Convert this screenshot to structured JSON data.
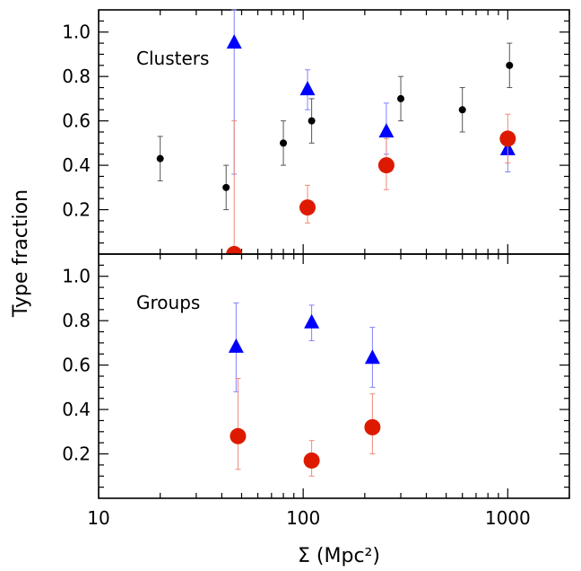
{
  "chart_data": [
    {
      "type": "scatter",
      "panel_label": "Clusters",
      "xlabel": "Σ (Mpc²)",
      "ylabel": "Type fraction",
      "x_scale": "log",
      "xlim": [
        10,
        2000
      ],
      "ylim": [
        0.0,
        1.1
      ],
      "x_ticks": [
        10,
        100,
        1000
      ],
      "x_tick_labels": [
        "",
        "",
        ""
      ],
      "y_ticks": [
        0.2,
        0.4,
        0.6,
        0.8,
        1.0
      ],
      "y_tick_labels": [
        "0.2",
        "0.4",
        "0.6",
        "0.8",
        "1.0"
      ],
      "series": [
        {
          "marker": "dot",
          "color": "#000000",
          "points": [
            {
              "x": 20,
              "y": 0.43,
              "lo": 0.33,
              "hi": 0.53
            },
            {
              "x": 42,
              "y": 0.3,
              "lo": 0.2,
              "hi": 0.4
            },
            {
              "x": 80,
              "y": 0.5,
              "lo": 0.4,
              "hi": 0.6
            },
            {
              "x": 110,
              "y": 0.6,
              "lo": 0.5,
              "hi": 0.7
            },
            {
              "x": 300,
              "y": 0.7,
              "lo": 0.6,
              "hi": 0.8
            },
            {
              "x": 600,
              "y": 0.65,
              "lo": 0.55,
              "hi": 0.75
            },
            {
              "x": 1020,
              "y": 0.85,
              "lo": 0.75,
              "hi": 0.95
            }
          ]
        },
        {
          "marker": "triangle",
          "color": "#0000ff",
          "points": [
            {
              "x": 46,
              "y": 0.95,
              "lo": 0.36,
              "hi": 1.1
            },
            {
              "x": 105,
              "y": 0.74,
              "lo": 0.65,
              "hi": 0.83
            },
            {
              "x": 255,
              "y": 0.55,
              "lo": 0.45,
              "hi": 0.68
            },
            {
              "x": 1000,
              "y": 0.47,
              "lo": 0.37,
              "hi": 0.55
            }
          ]
        },
        {
          "marker": "circle",
          "color": "#dd1a00",
          "points": [
            {
              "x": 46,
              "y": 0.0,
              "lo": 0.0,
              "hi": 0.6
            },
            {
              "x": 105,
              "y": 0.21,
              "lo": 0.14,
              "hi": 0.31
            },
            {
              "x": 255,
              "y": 0.4,
              "lo": 0.29,
              "hi": 0.52
            },
            {
              "x": 1000,
              "y": 0.52,
              "lo": 0.41,
              "hi": 0.63
            }
          ]
        }
      ]
    },
    {
      "type": "scatter",
      "panel_label": "Groups",
      "x_scale": "log",
      "xlim": [
        10,
        2000
      ],
      "ylim": [
        0.0,
        1.1
      ],
      "x_ticks": [
        10,
        100,
        1000
      ],
      "x_tick_labels": [
        "10",
        "100",
        "1000"
      ],
      "y_ticks": [
        0.2,
        0.4,
        0.6,
        0.8,
        1.0
      ],
      "y_tick_labels": [
        "0.2",
        "0.4",
        "0.6",
        "0.8",
        "1.0"
      ],
      "series": [
        {
          "marker": "triangle",
          "color": "#0000ff",
          "points": [
            {
              "x": 47,
              "y": 0.68,
              "lo": 0.48,
              "hi": 0.88
            },
            {
              "x": 110,
              "y": 0.79,
              "lo": 0.71,
              "hi": 0.87
            },
            {
              "x": 218,
              "y": 0.63,
              "lo": 0.5,
              "hi": 0.77
            }
          ]
        },
        {
          "marker": "circle",
          "color": "#dd1a00",
          "points": [
            {
              "x": 48,
              "y": 0.28,
              "lo": 0.13,
              "hi": 0.54
            },
            {
              "x": 110,
              "y": 0.17,
              "lo": 0.1,
              "hi": 0.26
            },
            {
              "x": 218,
              "y": 0.32,
              "lo": 0.2,
              "hi": 0.47
            }
          ]
        }
      ]
    }
  ]
}
